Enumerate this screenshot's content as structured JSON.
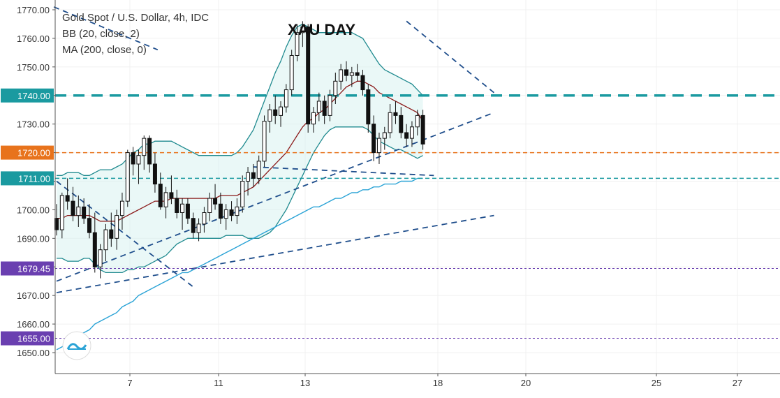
{
  "chart_data": {
    "type": "candlestick",
    "title": "XAU DAY",
    "legend": [
      "Gold Spot / U.S. Dollar, 4h, IDC",
      "BB (20, close, 2)",
      "MA (200, close, 0)"
    ],
    "y_ticks": [
      1650,
      1660,
      1670,
      1680,
      1690,
      1700,
      1710,
      1720,
      1730,
      1740,
      1750,
      1760,
      1770
    ],
    "ylim": [
      1646,
      1772
    ],
    "x_ticks": [
      "7",
      "11",
      "13",
      "18",
      "20",
      "25",
      "27"
    ],
    "horizontal_levels": [
      {
        "value": 1740.0,
        "label": "1740.00",
        "color": "#1a9aa0",
        "style": "dashed-thick"
      },
      {
        "value": 1720.0,
        "label": "1720.00",
        "color": "#e8731c",
        "style": "dashed"
      },
      {
        "value": 1711.0,
        "label": "1711.00",
        "color": "#1a9aa0",
        "style": "dashed"
      },
      {
        "value": 1679.45,
        "label": "1679.45",
        "color": "#6a3fb0",
        "style": "dotted"
      },
      {
        "value": 1655.0,
        "label": "1655.00",
        "color": "#6a3fb0",
        "style": "dotted"
      }
    ],
    "candles": [
      [
        1697,
        1702,
        1691,
        1693
      ],
      [
        1693,
        1706,
        1690,
        1705
      ],
      [
        1705,
        1711,
        1700,
        1703
      ],
      [
        1703,
        1708,
        1696,
        1698
      ],
      [
        1698,
        1705,
        1694,
        1701
      ],
      [
        1701,
        1704,
        1695,
        1697
      ],
      [
        1697,
        1702,
        1690,
        1692
      ],
      [
        1692,
        1699,
        1678,
        1680
      ],
      [
        1680,
        1688,
        1676,
        1686
      ],
      [
        1686,
        1695,
        1682,
        1693
      ],
      [
        1693,
        1699,
        1687,
        1690
      ],
      [
        1690,
        1700,
        1686,
        1698
      ],
      [
        1698,
        1706,
        1693,
        1703
      ],
      [
        1703,
        1721,
        1701,
        1720
      ],
      [
        1720,
        1722,
        1712,
        1716
      ],
      [
        1716,
        1721,
        1709,
        1719
      ],
      [
        1719,
        1726,
        1714,
        1725
      ],
      [
        1725,
        1726,
        1713,
        1716
      ],
      [
        1716,
        1720,
        1706,
        1709
      ],
      [
        1709,
        1713,
        1700,
        1701
      ],
      [
        1701,
        1708,
        1697,
        1706
      ],
      [
        1706,
        1712,
        1702,
        1704
      ],
      [
        1704,
        1707,
        1697,
        1699
      ],
      [
        1699,
        1704,
        1693,
        1702
      ],
      [
        1702,
        1704,
        1695,
        1697
      ],
      [
        1697,
        1699,
        1690,
        1692
      ],
      [
        1692,
        1697,
        1689,
        1695
      ],
      [
        1695,
        1701,
        1692,
        1699
      ],
      [
        1699,
        1706,
        1696,
        1704
      ],
      [
        1704,
        1709,
        1700,
        1702
      ],
      [
        1702,
        1706,
        1695,
        1697
      ],
      [
        1697,
        1702,
        1693,
        1700
      ],
      [
        1700,
        1703,
        1696,
        1698
      ],
      [
        1698,
        1704,
        1695,
        1701
      ],
      [
        1701,
        1712,
        1699,
        1710
      ],
      [
        1710,
        1715,
        1705,
        1713
      ],
      [
        1713,
        1716,
        1708,
        1711
      ],
      [
        1711,
        1719,
        1709,
        1717
      ],
      [
        1717,
        1733,
        1715,
        1731
      ],
      [
        1731,
        1737,
        1727,
        1735
      ],
      [
        1735,
        1740,
        1730,
        1733
      ],
      [
        1733,
        1738,
        1729,
        1736
      ],
      [
        1736,
        1744,
        1734,
        1742
      ],
      [
        1742,
        1756,
        1740,
        1754
      ],
      [
        1754,
        1765,
        1752,
        1762
      ],
      [
        1762,
        1766,
        1757,
        1764
      ],
      [
        1764,
        1765,
        1727,
        1730
      ],
      [
        1730,
        1736,
        1727,
        1734
      ],
      [
        1734,
        1741,
        1731,
        1738
      ],
      [
        1738,
        1740,
        1730,
        1733
      ],
      [
        1733,
        1742,
        1731,
        1740
      ],
      [
        1740,
        1748,
        1737,
        1745
      ],
      [
        1745,
        1751,
        1742,
        1749
      ],
      [
        1749,
        1752,
        1745,
        1747
      ],
      [
        1747,
        1750,
        1743,
        1748
      ],
      [
        1748,
        1751,
        1745,
        1747
      ],
      [
        1747,
        1749,
        1740,
        1742
      ],
      [
        1742,
        1744,
        1727,
        1730
      ],
      [
        1730,
        1733,
        1717,
        1720
      ],
      [
        1720,
        1727,
        1716,
        1725
      ],
      [
        1725,
        1729,
        1721,
        1727
      ],
      [
        1727,
        1737,
        1725,
        1734
      ],
      [
        1734,
        1738,
        1730,
        1733
      ],
      [
        1733,
        1736,
        1725,
        1727
      ],
      [
        1727,
        1730,
        1722,
        1725
      ],
      [
        1725,
        1731,
        1722,
        1729
      ],
      [
        1729,
        1735,
        1726,
        1733
      ],
      [
        1733,
        1735,
        1721,
        1723
      ]
    ],
    "series": [
      {
        "kind": "ma",
        "values": [
          1697,
          1697,
          1698,
          1698,
          1698,
          1698,
          1698,
          1697,
          1696,
          1696,
          1696,
          1696,
          1697,
          1698,
          1699,
          1700,
          1701,
          1702,
          1703,
          1703,
          1703,
          1704,
          1704,
          1704,
          1704,
          1704,
          1704,
          1704,
          1704,
          1704,
          1705,
          1705,
          1705,
          1705,
          1706,
          1707,
          1708,
          1710,
          1712,
          1714,
          1716,
          1718,
          1720,
          1723,
          1726,
          1729,
          1731,
          1732,
          1734,
          1735,
          1737,
          1739,
          1741,
          1743,
          1744,
          1745,
          1745,
          1744,
          1743,
          1741,
          1740,
          1739,
          1738,
          1737,
          1736,
          1735,
          1734,
          1731
        ]
      },
      {
        "kind": "bb_upper",
        "values": [
          1712,
          1712,
          1713,
          1713,
          1713,
          1712,
          1712,
          1713,
          1714,
          1714,
          1714,
          1715,
          1716,
          1718,
          1720,
          1721,
          1723,
          1723,
          1724,
          1724,
          1724,
          1724,
          1723,
          1722,
          1721,
          1720,
          1719,
          1719,
          1719,
          1719,
          1719,
          1719,
          1719,
          1720,
          1722,
          1725,
          1728,
          1733,
          1738,
          1743,
          1748,
          1752,
          1757,
          1761,
          1764,
          1765,
          1764,
          1763,
          1762,
          1762,
          1762,
          1762,
          1762,
          1762,
          1762,
          1761,
          1760,
          1757,
          1754,
          1751,
          1749,
          1748,
          1747,
          1746,
          1745,
          1744,
          1742,
          1740
        ]
      },
      {
        "kind": "bb_lower",
        "values": [
          1683,
          1683,
          1682,
          1682,
          1682,
          1683,
          1683,
          1681,
          1679,
          1678,
          1678,
          1678,
          1678,
          1679,
          1679,
          1680,
          1680,
          1681,
          1682,
          1683,
          1684,
          1686,
          1688,
          1689,
          1690,
          1690,
          1690,
          1690,
          1690,
          1690,
          1690,
          1691,
          1691,
          1691,
          1691,
          1690,
          1690,
          1690,
          1691,
          1692,
          1694,
          1697,
          1700,
          1704,
          1708,
          1712,
          1716,
          1720,
          1723,
          1726,
          1728,
          1729,
          1729,
          1729,
          1729,
          1729,
          1729,
          1728,
          1726,
          1724,
          1723,
          1722,
          1721,
          1721,
          1720,
          1719,
          1718,
          1719
        ]
      },
      {
        "kind": "ma200",
        "values": [
          1651,
          1652,
          1653,
          1655,
          1656,
          1657,
          1658,
          1660,
          1661,
          1662,
          1663,
          1664,
          1666,
          1667,
          1668,
          1670,
          1671,
          1672,
          1673,
          1674,
          1675,
          1676,
          1677,
          1678,
          1678,
          1679,
          1680,
          1681,
          1682,
          1683,
          1684,
          1685,
          1686,
          1687,
          1688,
          1689,
          1690,
          1691,
          1692,
          1693,
          1694,
          1695,
          1696,
          1697,
          1698,
          1699,
          1700,
          1701,
          1701,
          1702,
          1703,
          1704,
          1704,
          1705,
          1706,
          1706,
          1707,
          1707,
          1708,
          1708,
          1709,
          1709,
          1709,
          1710,
          1710,
          1710,
          1711,
          1711
        ]
      }
    ],
    "trendlines": [
      {
        "from": [
          -0.5,
          1771
        ],
        "to": [
          18.5,
          1756
        ]
      },
      {
        "from": [
          0,
          1710
        ],
        "to": [
          25,
          1673
        ]
      },
      {
        "from": [
          0,
          1675
        ],
        "to": [
          80,
          1734
        ]
      },
      {
        "from": [
          0,
          1671
        ],
        "to": [
          80,
          1698
        ]
      },
      {
        "from": [
          64,
          1766
        ],
        "to": [
          80,
          1741
        ]
      },
      {
        "from": [
          36,
          1715
        ],
        "to": [
          69,
          1712
        ]
      }
    ],
    "colors": {
      "up_body": "#ffffff",
      "down_body": "#111111",
      "wick": "#111111",
      "ma": "#8b1a1a",
      "bb_line": "#1f8a8f",
      "bb_fill": "#d9f2f1",
      "ma200": "#2aa3d6",
      "trend": "#1f4e8c"
    }
  }
}
